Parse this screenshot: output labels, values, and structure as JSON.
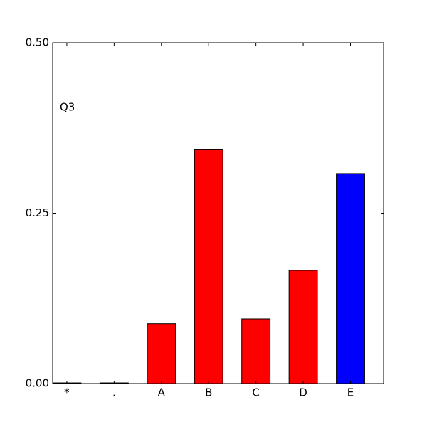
{
  "chart_data": {
    "type": "bar",
    "annotation": "Q3",
    "categories": [
      "*",
      ".",
      "A",
      "B",
      "C",
      "D",
      "E"
    ],
    "values": [
      0.001,
      0.001,
      0.088,
      0.343,
      0.095,
      0.166,
      0.308
    ],
    "colors": [
      "#ff0000",
      "#ff0000",
      "#ff0000",
      "#ff0000",
      "#ff0000",
      "#ff0000",
      "#0000ff"
    ],
    "ylim": [
      0,
      0.5
    ],
    "yticks": [
      {
        "value": 0,
        "label": "0.00"
      },
      {
        "value": 0.25,
        "label": "0.25"
      },
      {
        "value": 0.5,
        "label": "0.50"
      }
    ],
    "grid": false
  }
}
